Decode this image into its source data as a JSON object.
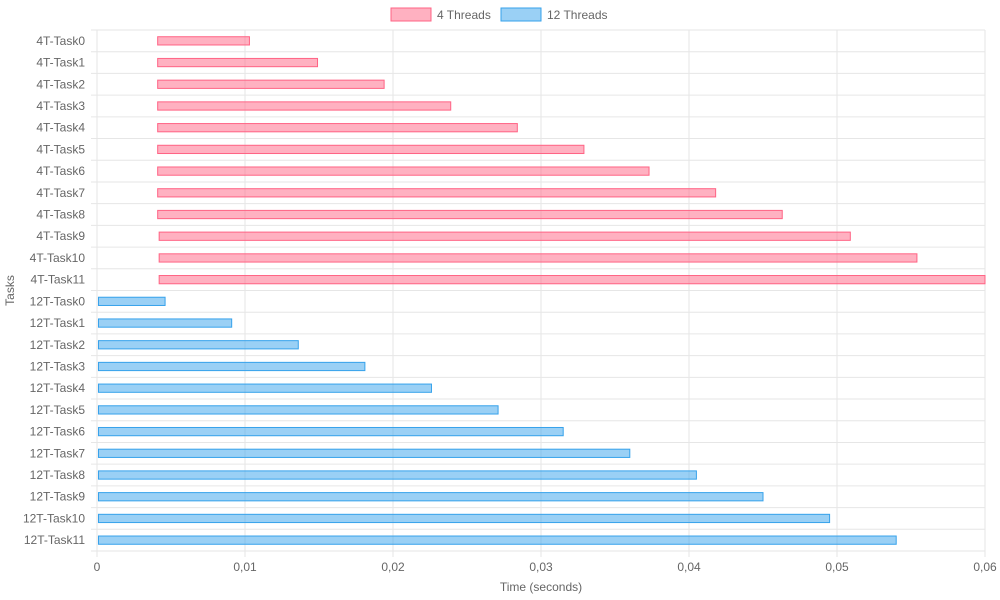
{
  "chart_data": {
    "type": "bar",
    "orientation": "horizontal-floating",
    "xlabel": "Time (seconds)",
    "ylabel": "Tasks",
    "xlim": [
      0,
      0.06
    ],
    "x_ticks": [
      "0",
      "0,01",
      "0,02",
      "0,03",
      "0,04",
      "0,05",
      "0,06"
    ],
    "grid": true,
    "legend_position": "top",
    "categories": [
      "4T-Task0",
      "4T-Task1",
      "4T-Task2",
      "4T-Task3",
      "4T-Task4",
      "4T-Task5",
      "4T-Task6",
      "4T-Task7",
      "4T-Task8",
      "4T-Task9",
      "4T-Task10",
      "4T-Task11",
      "12T-Task0",
      "12T-Task1",
      "12T-Task2",
      "12T-Task3",
      "12T-Task4",
      "12T-Task5",
      "12T-Task6",
      "12T-Task7",
      "12T-Task8",
      "12T-Task9",
      "12T-Task10",
      "12T-Task11"
    ],
    "series": [
      {
        "name": "4 Threads",
        "color": "#ff6384",
        "fill": "rgba(255,99,132,0.5)",
        "categories": [
          "4T-Task0",
          "4T-Task1",
          "4T-Task2",
          "4T-Task3",
          "4T-Task4",
          "4T-Task5",
          "4T-Task6",
          "4T-Task7",
          "4T-Task8",
          "4T-Task9",
          "4T-Task10",
          "4T-Task11"
        ],
        "ranges": [
          [
            0.0041,
            0.0103
          ],
          [
            0.0041,
            0.0149
          ],
          [
            0.0041,
            0.0194
          ],
          [
            0.0041,
            0.0239
          ],
          [
            0.0041,
            0.0284
          ],
          [
            0.0041,
            0.0329
          ],
          [
            0.0041,
            0.0373
          ],
          [
            0.0041,
            0.0418
          ],
          [
            0.0041,
            0.0463
          ],
          [
            0.0042,
            0.0509
          ],
          [
            0.0042,
            0.0554
          ],
          [
            0.0042,
            0.06
          ]
        ]
      },
      {
        "name": "12 Threads",
        "color": "#36a2eb",
        "fill": "rgba(54,162,235,0.5)",
        "categories": [
          "12T-Task0",
          "12T-Task1",
          "12T-Task2",
          "12T-Task3",
          "12T-Task4",
          "12T-Task5",
          "12T-Task6",
          "12T-Task7",
          "12T-Task8",
          "12T-Task9",
          "12T-Task10",
          "12T-Task11"
        ],
        "ranges": [
          [
            0.0001,
            0.0046
          ],
          [
            0.0001,
            0.0091
          ],
          [
            0.0001,
            0.0136
          ],
          [
            0.0001,
            0.0181
          ],
          [
            0.0001,
            0.0226
          ],
          [
            0.0001,
            0.0271
          ],
          [
            0.0001,
            0.0315
          ],
          [
            0.0001,
            0.036
          ],
          [
            0.0001,
            0.0405
          ],
          [
            0.0001,
            0.045
          ],
          [
            0.0001,
            0.0495
          ],
          [
            0.0001,
            0.054
          ]
        ]
      }
    ]
  }
}
